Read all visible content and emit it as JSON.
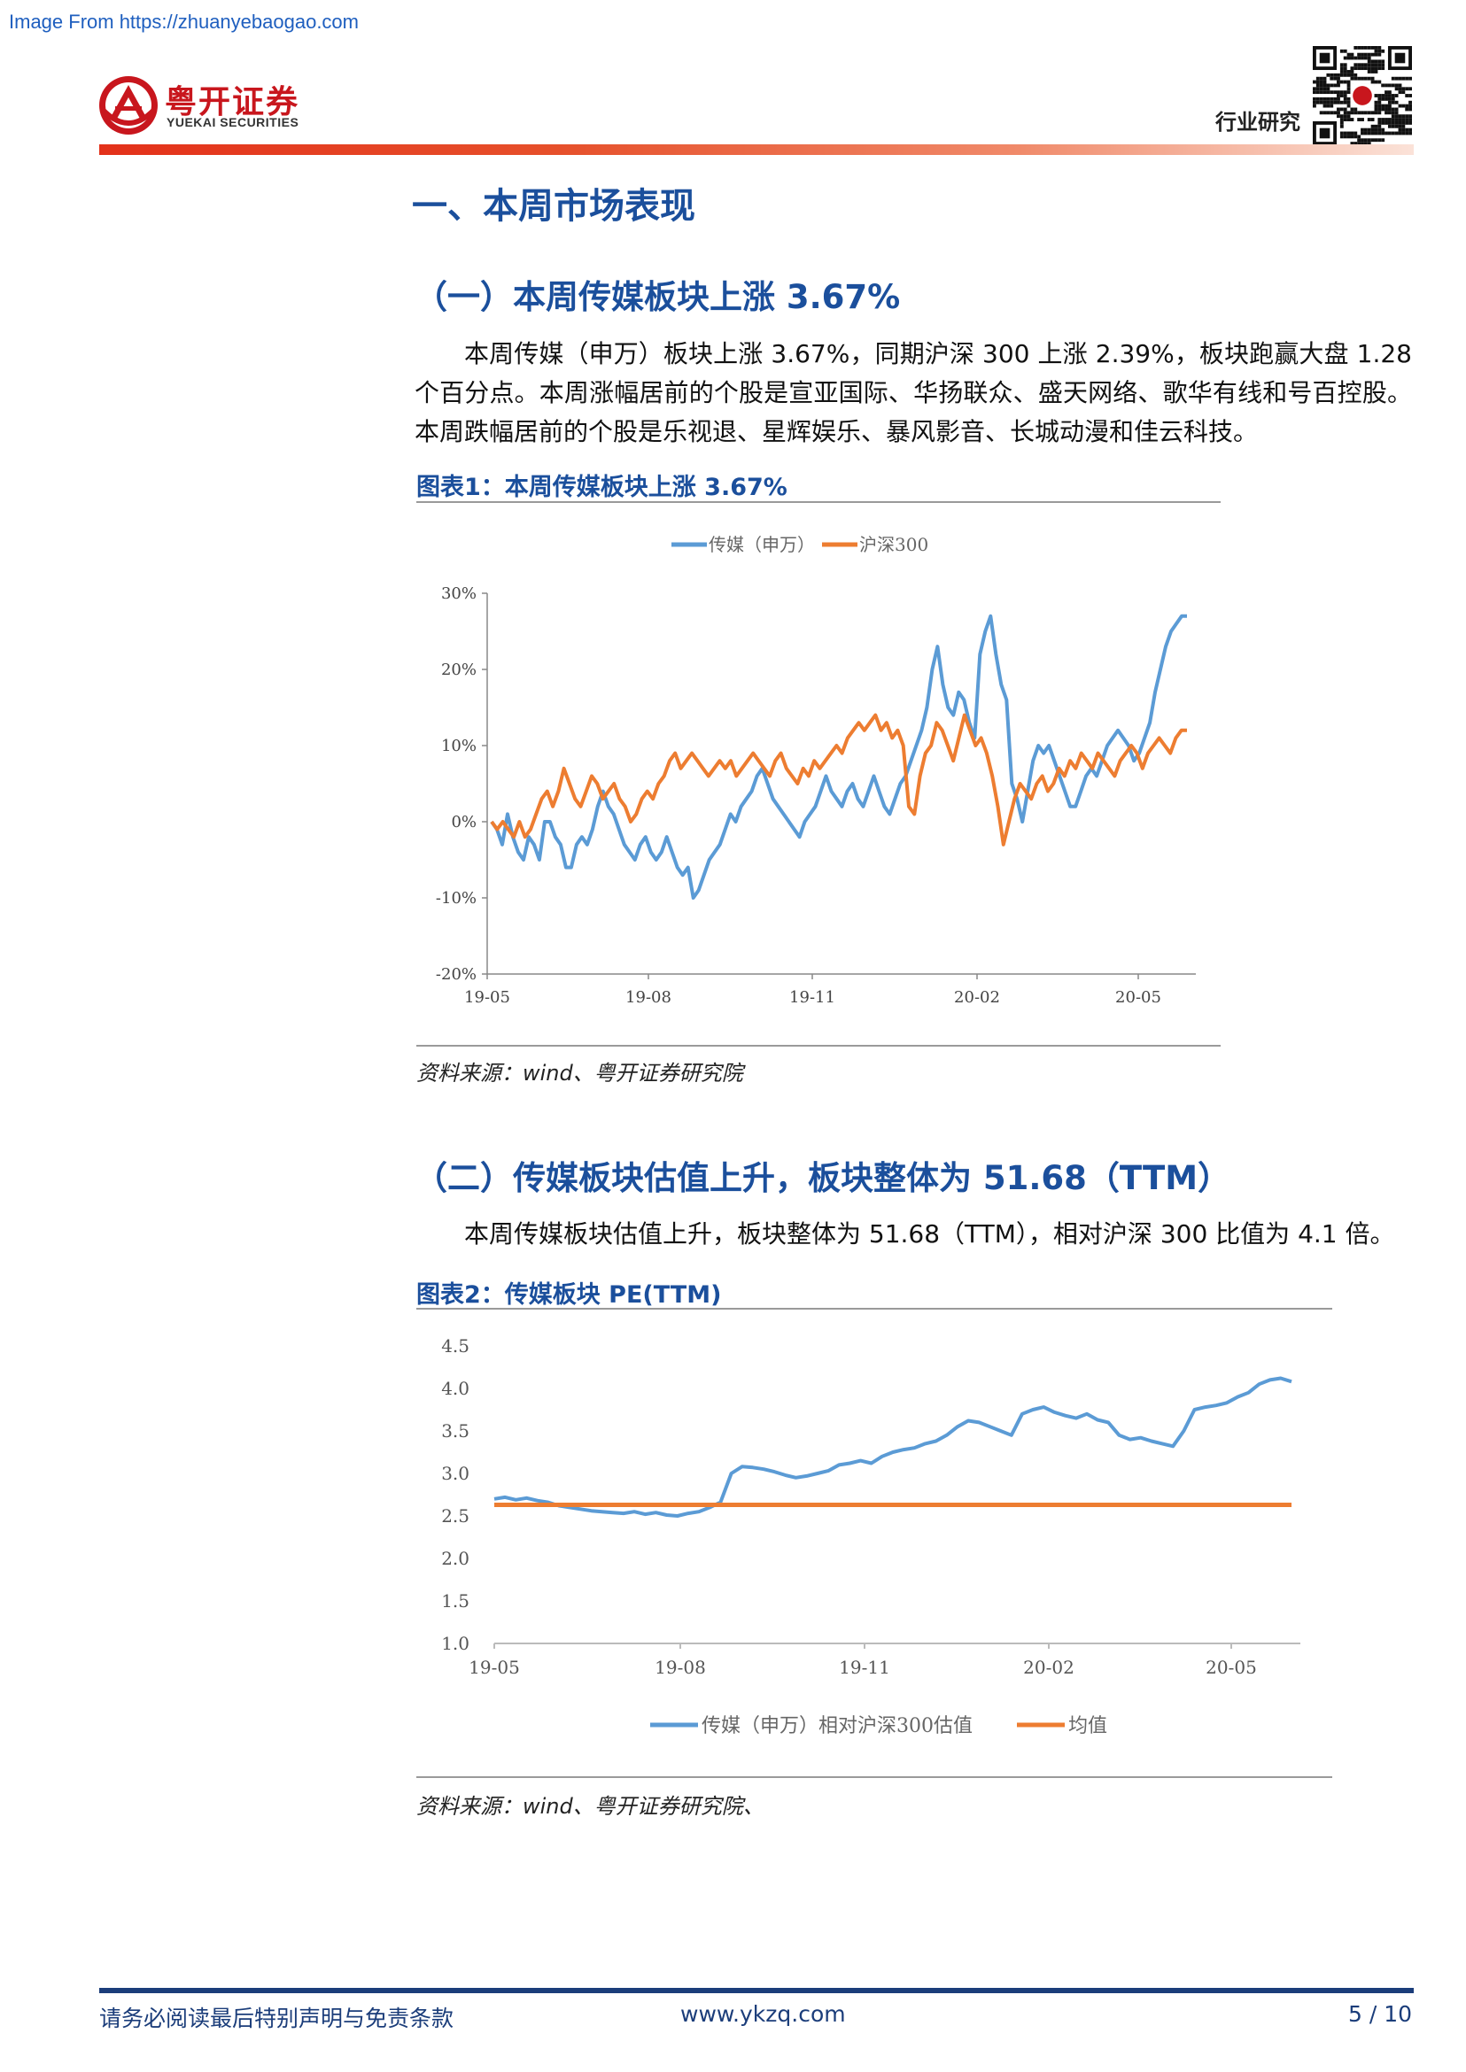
{
  "watermark": "Image From https://zhuanyebaogao.com",
  "header": {
    "logo_cn": "粤开证券",
    "logo_en": "YUEKAI SECURITIES",
    "tag": "行业研究"
  },
  "section": {
    "title": "一、本周市场表现",
    "sub1_title": "（一）本周传媒板块上涨 3.67%",
    "para1": "本周传媒（申万）板块上涨 3.67%，同期沪深 300 上涨 2.39%，板块跑赢大盘 1.28 个百分点。本周涨幅居前的个股是宣亚国际、华扬联众、盛天网络、歌华有线和号百控股。本周跌幅居前的个股是乐视退、星辉娱乐、暴风影音、长城动漫和佳云科技。",
    "fig1_title": "图表1：本周传媒板块上涨 3.67%",
    "fig1_source": "资料来源：wind、粤开证券研究院",
    "sub2_title": "（二）传媒板块估值上升，板块整体为 51.68（TTM）",
    "para2": "本周传媒板块估值上升，板块整体为 51.68（TTM），相对沪深 300 比值为 4.1 倍。",
    "fig2_title": "图表2：传媒板块 PE(TTM)",
    "fig2_source": "资料来源：wind、粤开证券研究院、"
  },
  "footer": {
    "disclaimer": "请务必阅读最后特别声明与免责条款",
    "website": "www.ykzq.com",
    "page": "5 / 10"
  },
  "colors": {
    "blue_series": "#5b9bd5",
    "orange_series": "#ed7d31",
    "heading": "#1b4f9c",
    "brand_red": "#c8161d"
  },
  "chart_data": [
    {
      "type": "line",
      "title": "",
      "xlabel": "",
      "ylabel": "",
      "x_ticks": [
        "19-05",
        "19-08",
        "19-11",
        "20-02",
        "20-05"
      ],
      "y_ticks": [
        "30%",
        "20%",
        "10%",
        "0%",
        "-10%",
        "-20%"
      ],
      "ylim": [
        -20,
        30
      ],
      "legend_position": "top",
      "series": [
        {
          "name": "传媒（申万）",
          "color": "#5b9bd5",
          "values": [
            0,
            -1,
            -3,
            1,
            -2,
            -4,
            -5,
            -2,
            -3,
            -5,
            0,
            0,
            -2,
            -3,
            -6,
            -6,
            -3,
            -2,
            -3,
            -1,
            2,
            4,
            2,
            1,
            -1,
            -3,
            -4,
            -5,
            -3,
            -2,
            -4,
            -5,
            -4,
            -2,
            -4,
            -6,
            -7,
            -6,
            -10,
            -9,
            -7,
            -5,
            -4,
            -3,
            -1,
            1,
            0,
            2,
            3,
            4,
            6,
            7,
            5,
            3,
            2,
            1,
            0,
            -1,
            -2,
            0,
            1,
            2,
            4,
            6,
            4,
            3,
            2,
            4,
            5,
            3,
            2,
            4,
            6,
            4,
            2,
            1,
            3,
            5,
            6,
            8,
            10,
            12,
            15,
            20,
            23,
            18,
            15,
            14,
            17,
            16,
            13,
            11,
            22,
            25,
            27,
            22,
            18,
            16,
            5,
            3,
            0,
            4,
            8,
            10,
            9,
            10,
            8,
            6,
            4,
            2,
            2,
            4,
            6,
            7,
            6,
            8,
            10,
            11,
            12,
            11,
            10,
            8,
            9,
            11,
            13,
            17,
            20,
            23,
            25,
            26,
            27,
            27
          ]
        },
        {
          "name": "沪深300",
          "color": "#ed7d31",
          "values": [
            0,
            -1,
            0,
            -1,
            -2,
            0,
            -2,
            -1,
            1,
            3,
            4,
            2,
            4,
            7,
            5,
            3,
            2,
            4,
            6,
            5,
            3,
            4,
            5,
            3,
            2,
            0,
            1,
            3,
            4,
            3,
            5,
            6,
            8,
            9,
            7,
            8,
            9,
            8,
            7,
            6,
            7,
            8,
            7,
            8,
            6,
            7,
            8,
            9,
            8,
            7,
            6,
            8,
            9,
            7,
            6,
            5,
            7,
            6,
            8,
            7,
            8,
            9,
            10,
            9,
            11,
            12,
            13,
            12,
            13,
            14,
            12,
            13,
            11,
            12,
            10,
            2,
            1,
            6,
            9,
            10,
            13,
            12,
            10,
            8,
            11,
            14,
            12,
            10,
            11,
            9,
            6,
            2,
            -3,
            0,
            3,
            5,
            4,
            3,
            5,
            6,
            4,
            5,
            7,
            6,
            8,
            7,
            9,
            8,
            7,
            9,
            8,
            7,
            6,
            8,
            9,
            10,
            9,
            7,
            9,
            10,
            11,
            10,
            9,
            11,
            12,
            12
          ]
        }
      ]
    },
    {
      "type": "line",
      "title": "",
      "xlabel": "",
      "ylabel": "",
      "x_ticks": [
        "19-05",
        "19-08",
        "19-11",
        "20-02",
        "20-05"
      ],
      "y_ticks": [
        "4.5",
        "4.0",
        "3.5",
        "3.0",
        "2.5",
        "2.0",
        "1.5",
        "1.0"
      ],
      "ylim": [
        1.0,
        4.5
      ],
      "legend_position": "bottom",
      "series": [
        {
          "name": "传媒（申万）相对沪深300估值",
          "color": "#5b9bd5",
          "values": [
            2.7,
            2.72,
            2.69,
            2.71,
            2.68,
            2.66,
            2.62,
            2.6,
            2.58,
            2.56,
            2.55,
            2.54,
            2.53,
            2.55,
            2.52,
            2.54,
            2.51,
            2.5,
            2.53,
            2.55,
            2.6,
            2.66,
            3.0,
            3.08,
            3.07,
            3.05,
            3.02,
            2.98,
            2.95,
            2.97,
            3.0,
            3.03,
            3.1,
            3.12,
            3.15,
            3.12,
            3.2,
            3.25,
            3.28,
            3.3,
            3.35,
            3.38,
            3.45,
            3.55,
            3.62,
            3.6,
            3.55,
            3.5,
            3.45,
            3.7,
            3.75,
            3.78,
            3.72,
            3.68,
            3.65,
            3.7,
            3.63,
            3.6,
            3.45,
            3.4,
            3.42,
            3.38,
            3.35,
            3.32,
            3.5,
            3.75,
            3.78,
            3.8,
            3.83,
            3.9,
            3.95,
            4.05,
            4.1,
            4.12,
            4.08
          ]
        },
        {
          "name": "均值",
          "color": "#ed7d31",
          "values": [
            2.63,
            2.63
          ]
        }
      ]
    }
  ]
}
